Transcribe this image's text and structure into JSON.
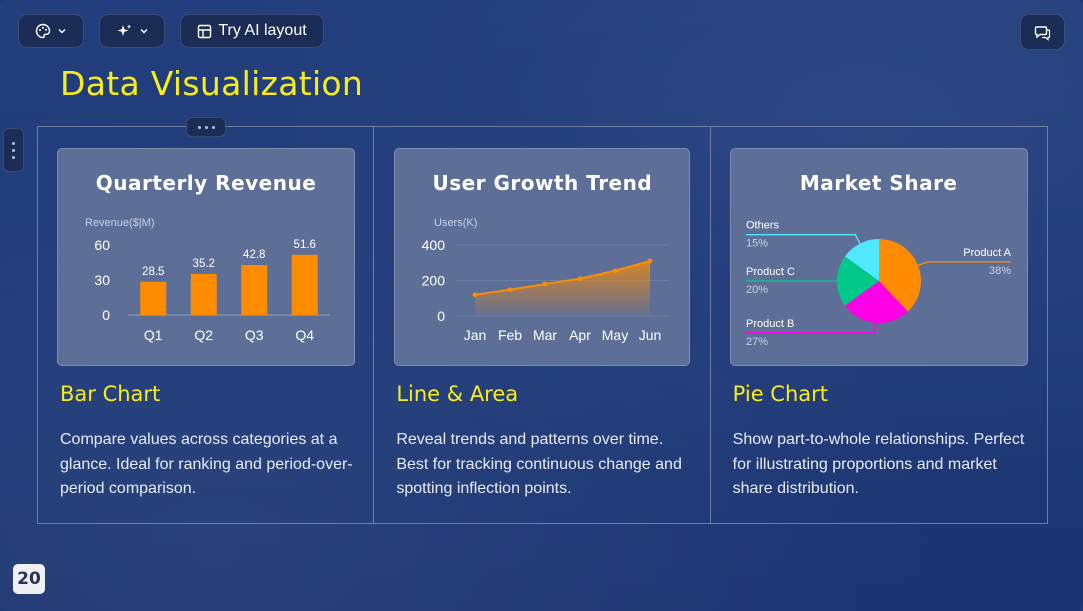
{
  "toolbar": {
    "theme_icon": "palette-icon",
    "ai_icon": "sparkles-icon",
    "layout_icon": "layout-icon",
    "try_ai_label": "Try AI layout",
    "comment_icon": "comment-icon"
  },
  "slide": {
    "title": "Data Visualization",
    "page_number": "20"
  },
  "colors": {
    "title": "#f8ec1a",
    "bar": "#ff8c00",
    "background": "#1f3a78",
    "card": "#5d6f97"
  },
  "columns": [
    {
      "card_title": "Quarterly Revenue",
      "heading": "Bar Chart",
      "description": "Compare values across categories at a glance. Ideal for ranking and period-over-period comparison."
    },
    {
      "card_title": "User Growth Trend",
      "heading": "Line & Area",
      "description": "Reveal trends and patterns over time. Best for tracking continuous change and spotting inflection points."
    },
    {
      "card_title": "Market Share",
      "heading": "Pie Chart",
      "description": "Show part-to-whole relationships. Perfect for illustrating proportions and market share distribution."
    }
  ],
  "chart_data": [
    {
      "type": "bar",
      "title": "Quarterly Revenue",
      "ylabel": "Revenue($|M)",
      "categories": [
        "Q1",
        "Q2",
        "Q3",
        "Q4"
      ],
      "values": [
        28.5,
        35.2,
        42.8,
        51.6
      ],
      "yticks": [
        0,
        30,
        60
      ],
      "ylim": [
        0,
        60
      ],
      "color": "#ff8c00"
    },
    {
      "type": "area",
      "title": "User Growth Trend",
      "ylabel": "Users(K)",
      "categories": [
        "Jan",
        "Feb",
        "Mar",
        "Apr",
        "May",
        "Jun"
      ],
      "values": [
        120,
        148,
        180,
        210,
        255,
        310
      ],
      "yticks": [
        0,
        200,
        400
      ],
      "ylim": [
        0,
        400
      ],
      "color": "#ff8c00"
    },
    {
      "type": "pie",
      "title": "Market Share",
      "slices": [
        {
          "name": "Product A",
          "label": "38%",
          "value": 38,
          "color": "#ff8c00"
        },
        {
          "name": "Product B",
          "label": "27%",
          "value": 27,
          "color": "#ff00e6"
        },
        {
          "name": "Product C",
          "label": "20%",
          "value": 20,
          "color": "#00c98a"
        },
        {
          "name": "Others",
          "label": "15%",
          "value": 15,
          "color": "#4fe8ff"
        }
      ]
    }
  ]
}
